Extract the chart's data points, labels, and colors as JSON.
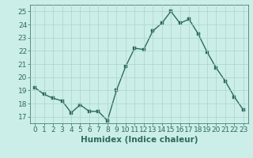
{
  "x": [
    0,
    1,
    2,
    3,
    4,
    5,
    6,
    7,
    8,
    9,
    10,
    11,
    12,
    13,
    14,
    15,
    16,
    17,
    18,
    19,
    20,
    21,
    22,
    23
  ],
  "y": [
    19.2,
    18.7,
    18.4,
    18.2,
    17.3,
    17.9,
    17.4,
    17.4,
    16.7,
    19.0,
    20.8,
    22.2,
    22.1,
    23.5,
    24.1,
    25.0,
    24.1,
    24.4,
    23.3,
    21.9,
    20.7,
    19.7,
    18.5,
    17.5
  ],
  "xlabel": "Humidex (Indice chaleur)",
  "ylim": [
    16.5,
    25.5
  ],
  "xlim": [
    -0.5,
    23.5
  ],
  "yticks": [
    17,
    18,
    19,
    20,
    21,
    22,
    23,
    24,
    25
  ],
  "xticks": [
    0,
    1,
    2,
    3,
    4,
    5,
    6,
    7,
    8,
    9,
    10,
    11,
    12,
    13,
    14,
    15,
    16,
    17,
    18,
    19,
    20,
    21,
    22,
    23
  ],
  "line_color": "#2d6b5c",
  "marker_color": "#2d6b5c",
  "bg_color": "#cceee8",
  "grid_color": "#aad4cc",
  "tick_fontsize": 6.5,
  "label_fontsize": 7.5,
  "line_width": 1.0,
  "marker_size": 2.5
}
